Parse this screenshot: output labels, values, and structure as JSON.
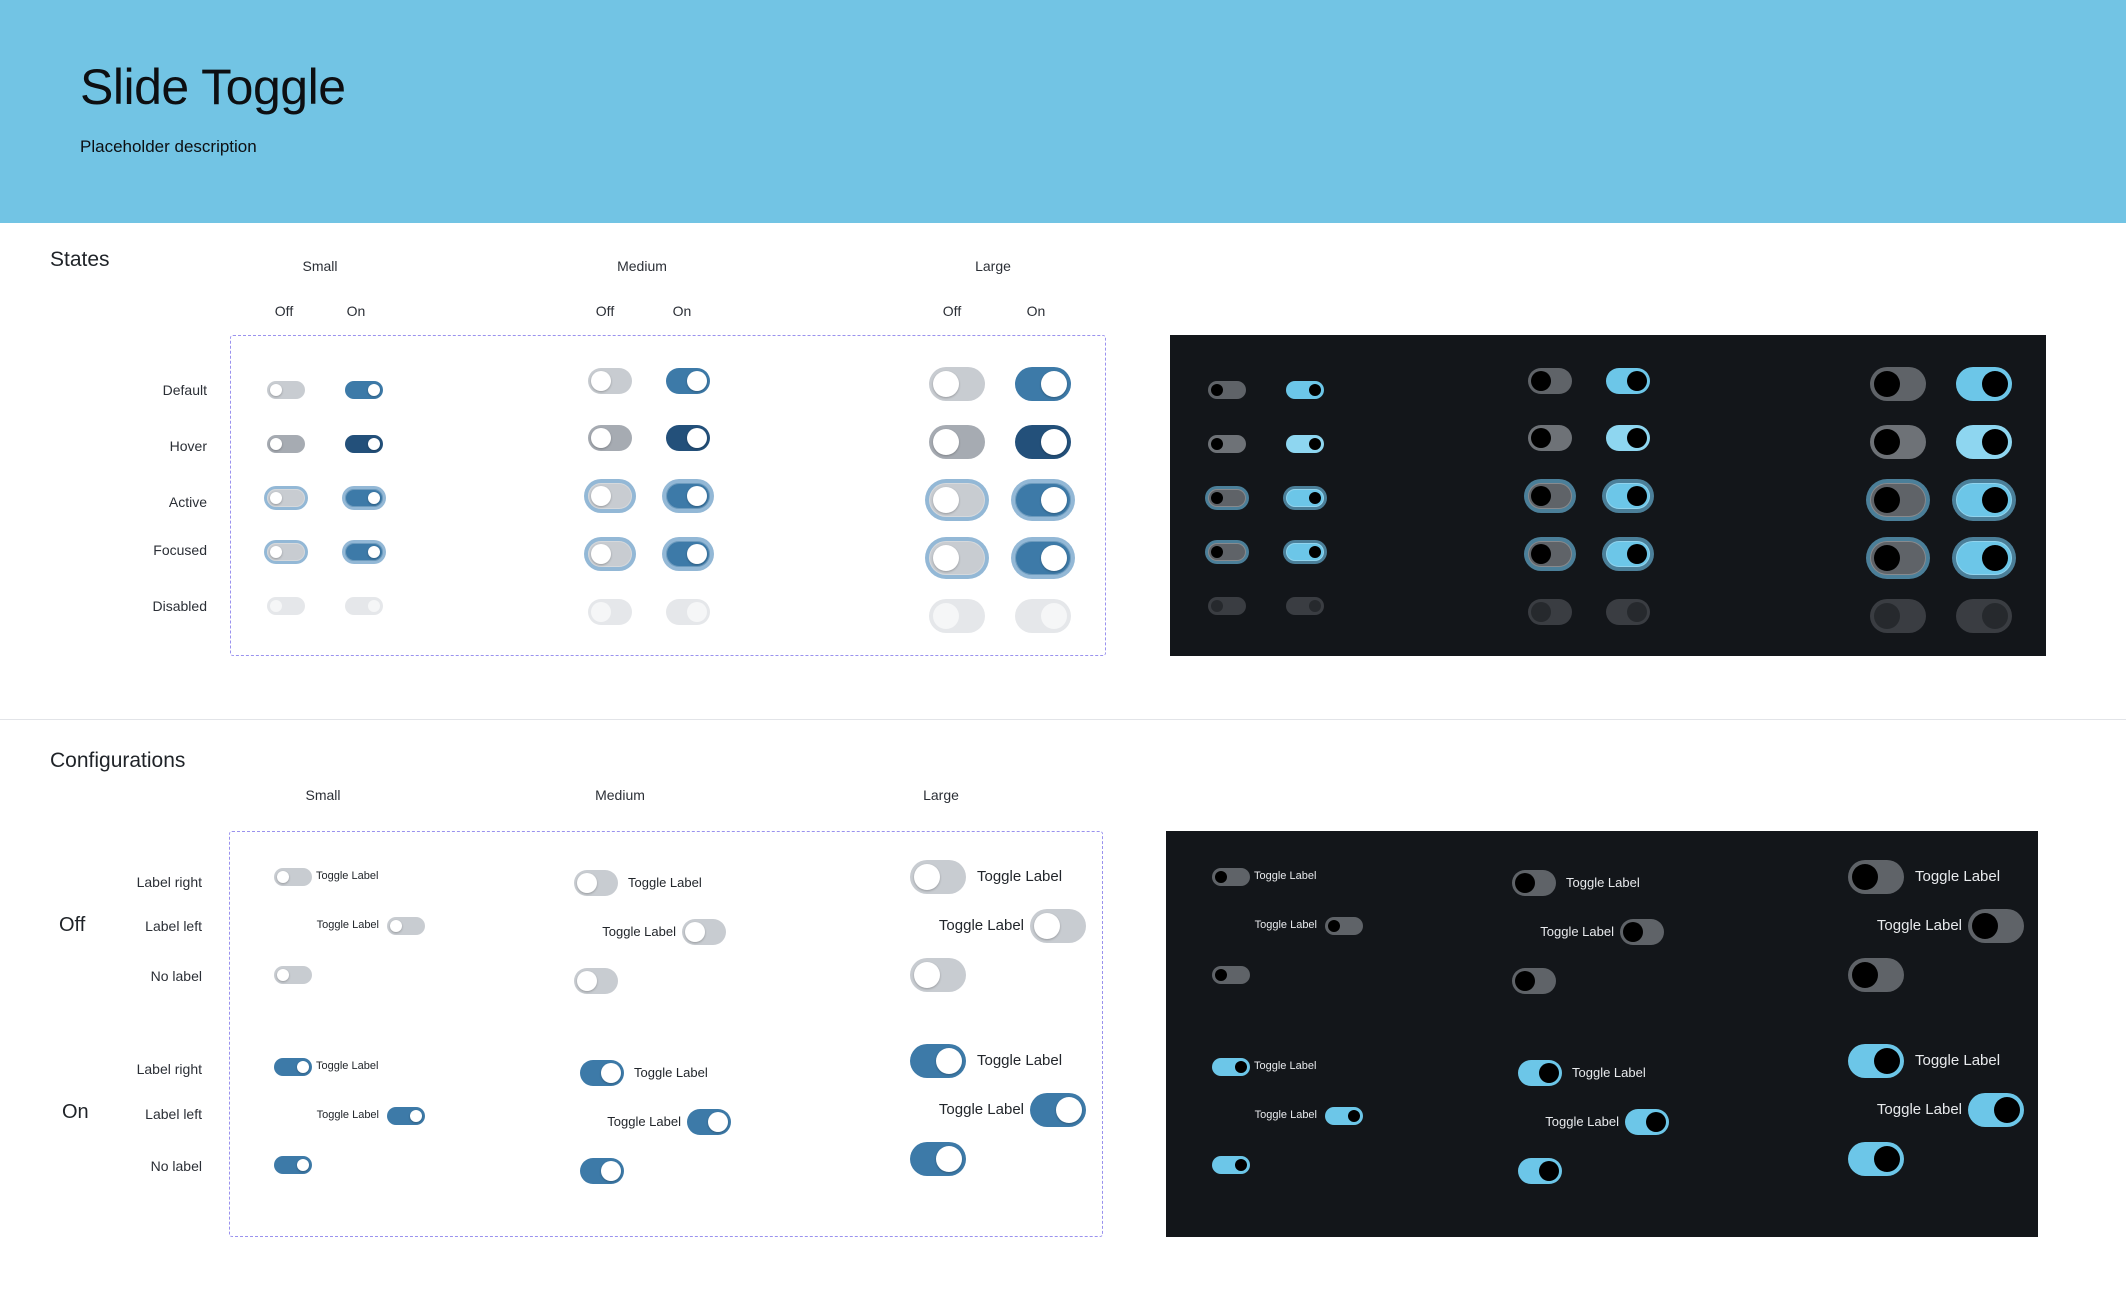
{
  "header": {
    "title": "Slide Toggle",
    "description": "Placeholder description"
  },
  "states": {
    "title": "States",
    "sizes": [
      "Small",
      "Medium",
      "Large"
    ],
    "off_label": "Off",
    "on_label": "On",
    "rows": [
      "Default",
      "Hover",
      "Active",
      "Focused",
      "Disabled"
    ]
  },
  "configurations": {
    "title": "Configurations",
    "sizes": [
      "Small",
      "Medium",
      "Large"
    ],
    "groups": [
      "Off",
      "On"
    ],
    "rows": [
      "Label right",
      "Label left",
      "No label"
    ],
    "toggle_label": "Toggle Label"
  },
  "colors": {
    "header_bg": "#72c4e4",
    "light_on": "#3d7aa8",
    "light_on_hover": "#23507a",
    "light_off": "#c8ccd1",
    "light_off_hover": "#a6abb2",
    "dark_bg": "#13161a",
    "dark_on": "#6cc6e8",
    "dark_off": "#5f6368",
    "focus_ring": "#93b8d6",
    "dashed_border": "#9a92ee"
  }
}
